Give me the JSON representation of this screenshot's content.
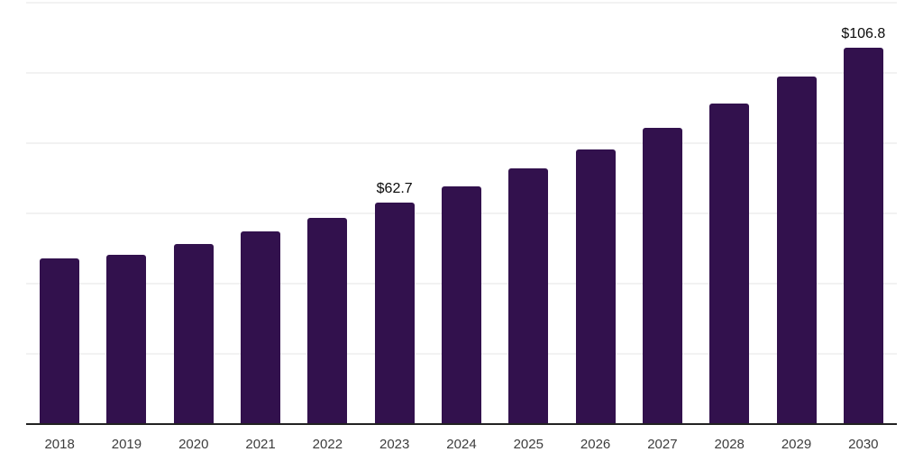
{
  "chart_data": {
    "type": "bar",
    "title": "",
    "xlabel": "",
    "ylabel": "",
    "categories": [
      "2018",
      "2019",
      "2020",
      "2021",
      "2022",
      "2023",
      "2024",
      "2025",
      "2026",
      "2027",
      "2028",
      "2029",
      "2030"
    ],
    "values": [
      46.8,
      47.9,
      51.1,
      54.6,
      58.5,
      62.7,
      67.5,
      72.6,
      77.9,
      84.1,
      91.0,
      98.7,
      106.8
    ],
    "annotations": [
      {
        "category": "2023",
        "text": "$62.7"
      },
      {
        "category": "2030",
        "text": "$106.8"
      }
    ],
    "ylim": [
      0,
      120
    ],
    "gridline_step": 20,
    "grid": "horizontal",
    "legend": "none",
    "y_axis_labels_visible": false
  },
  "style": {
    "bar_color": "#32114d",
    "gridline_color": "#f2f2f2",
    "axis_line_color": "#222222",
    "tick_label_color": "#3d3d3d",
    "data_label_color": "#0a0a0a",
    "background_color": "#ffffff"
  }
}
